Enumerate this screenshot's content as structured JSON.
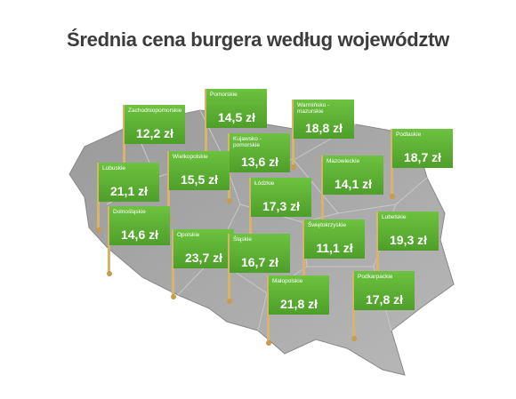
{
  "title": "Średnia cena burgera według województw",
  "flags": [
    {
      "name": "Zachodniopomorskie",
      "price": "12,2 zł"
    },
    {
      "name": "Pomorskie",
      "price": "14,5 zł"
    },
    {
      "name": "Warmińsko -mazurskie",
      "price": "18,8 zł"
    },
    {
      "name": "Podlaskie",
      "price": "18,7 zł"
    },
    {
      "name": "Kujawsko -pomorskie",
      "price": "13,6 zł"
    },
    {
      "name": "Lubuskie",
      "price": "21,1 zł"
    },
    {
      "name": "Wielkopolskie",
      "price": "15,5 zł"
    },
    {
      "name": "Mazowieckie",
      "price": "14,1 zł"
    },
    {
      "name": "Łódzkie",
      "price": "17,3 zł"
    },
    {
      "name": "Dolnośląskie",
      "price": "14,6 zł"
    },
    {
      "name": "Lubelskie",
      "price": "19,3 zł"
    },
    {
      "name": "Opolskie",
      "price": "23,7 zł"
    },
    {
      "name": "Świętokrzyskie",
      "price": "11,1 zł"
    },
    {
      "name": "Śląskie",
      "price": "16,7 zł"
    },
    {
      "name": "Małopolskie",
      "price": "21,8 zł"
    },
    {
      "name": "Podkarpackie",
      "price": "17,8 zł"
    }
  ]
}
